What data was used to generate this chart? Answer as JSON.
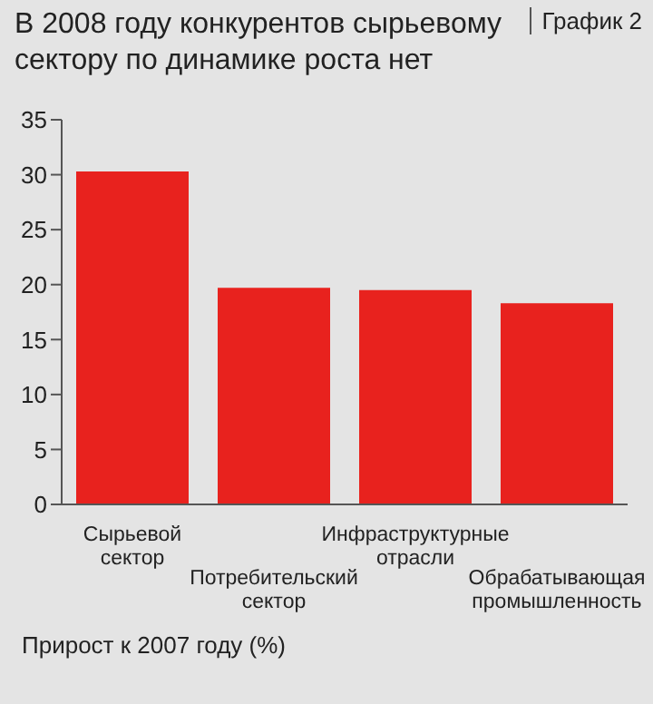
{
  "chart_data": {
    "type": "bar",
    "title": "В 2008 году конкурентов сырьевому сектору по динамике роста нет",
    "annotations": [
      "График 2",
      "Прирост к 2007 году (%)"
    ],
    "categories": [
      "Сырьевой сектор",
      "Потребительский сектор",
      "Инфраструктурные отрасли",
      "Обрабатывающая промышленность"
    ],
    "values": [
      30.3,
      19.7,
      19.5,
      18.3
    ],
    "color": "#e8221e",
    "ylim": [
      0,
      35
    ],
    "yticks": [
      0,
      5,
      10,
      15,
      20,
      25,
      30,
      35
    ],
    "grid": false
  }
}
